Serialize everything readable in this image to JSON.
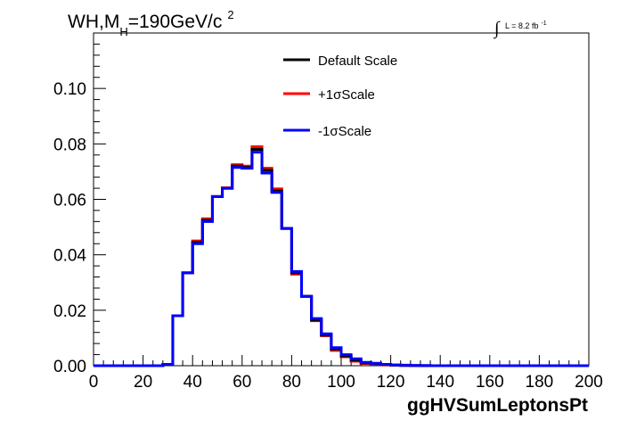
{
  "chart_data": {
    "type": "line",
    "title": {
      "main": "WH,M",
      "subscript": "H",
      "rest": "=190GeV/c",
      "superscript": "2"
    },
    "luminosity": {
      "integral": "∫",
      "text": "L = 8.2 fb",
      "superscript": "-1"
    },
    "xlabel": "ggHVSumLeptonsPt",
    "ylabel": "",
    "xlim": [
      0,
      200
    ],
    "ylim": [
      0,
      0.12
    ],
    "x_ticks": [
      "0",
      "20",
      "40",
      "60",
      "80",
      "100",
      "120",
      "140",
      "160",
      "180",
      "200"
    ],
    "y_ticks": [
      "0.00",
      "0.02",
      "0.04",
      "0.06",
      "0.08",
      "0.10"
    ],
    "grid": false,
    "legend_position": "top-center",
    "bin_edges": [
      0,
      4,
      8,
      12,
      16,
      20,
      24,
      28,
      32,
      36,
      40,
      44,
      48,
      52,
      56,
      60,
      64,
      68,
      72,
      76,
      80,
      84,
      88,
      92,
      96,
      100,
      104,
      108,
      112,
      116,
      120,
      124,
      128,
      132,
      136,
      140,
      144,
      148,
      152,
      156,
      160,
      164,
      168,
      172,
      176,
      180,
      184,
      188,
      192,
      196,
      200
    ],
    "series": [
      {
        "name": "Default Scale",
        "color": "#000000",
        "values": [
          0,
          0,
          0,
          0,
          0,
          0,
          0,
          0.0005,
          0.018,
          0.0335,
          0.0445,
          0.0525,
          0.061,
          0.064,
          0.072,
          0.0715,
          0.078,
          0.0705,
          0.063,
          0.0495,
          0.0335,
          0.025,
          0.0165,
          0.011,
          0.006,
          0.0035,
          0.002,
          0.001,
          0.0007,
          0.0004,
          0.0002,
          0.0001,
          0.0001,
          0,
          0,
          0,
          0,
          0,
          0,
          0,
          0,
          0,
          0,
          0,
          0,
          0,
          0,
          0,
          0,
          0
        ]
      },
      {
        "name": "+1σScale",
        "color": "#ff0000",
        "values": [
          0,
          0,
          0,
          0,
          0,
          0,
          0,
          0.0005,
          0.018,
          0.0335,
          0.045,
          0.053,
          0.061,
          0.0642,
          0.0725,
          0.072,
          0.079,
          0.0712,
          0.0638,
          0.0495,
          0.033,
          0.025,
          0.0162,
          0.0108,
          0.0055,
          0.0032,
          0.0016,
          0.0008,
          0.0005,
          0.0003,
          0.0002,
          0.0001,
          0,
          0,
          0,
          0,
          0,
          0,
          0,
          0,
          0,
          0,
          0,
          0,
          0,
          0,
          0,
          0,
          0,
          0
        ]
      },
      {
        "name": "-1σScale",
        "color": "#0000ff",
        "values": [
          0,
          0,
          0,
          0,
          0,
          0,
          0,
          0.0005,
          0.018,
          0.0335,
          0.044,
          0.052,
          0.061,
          0.064,
          0.0715,
          0.0712,
          0.077,
          0.0695,
          0.0625,
          0.0495,
          0.034,
          0.025,
          0.017,
          0.0115,
          0.0065,
          0.004,
          0.0025,
          0.0012,
          0.0009,
          0.0005,
          0.0003,
          0.0002,
          0.0001,
          0.0001,
          0,
          0,
          0,
          0,
          0,
          0,
          0,
          0,
          0,
          0,
          0,
          0,
          0,
          0,
          0,
          0,
          0
        ]
      }
    ]
  }
}
